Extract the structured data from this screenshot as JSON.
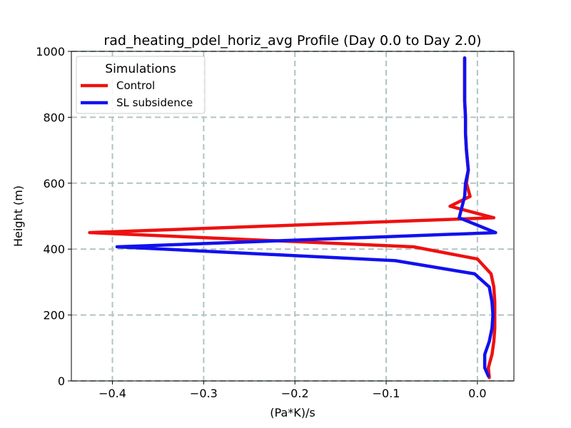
{
  "chart_data": {
    "type": "line",
    "title": "rad_heating_pdel_horiz_avg Profile (Day 0.0 to Day 2.0)",
    "xlabel": "(Pa*K)/s",
    "ylabel": "Height (m)",
    "xlim": [
      -0.445,
      0.04
    ],
    "ylim": [
      0,
      1000
    ],
    "xticks": [
      -0.4,
      -0.3,
      -0.2,
      -0.1,
      0.0
    ],
    "xtick_labels": [
      "−0.4",
      "−0.3",
      "−0.2",
      "−0.1",
      "0.0"
    ],
    "yticks": [
      0,
      200,
      400,
      600,
      800,
      1000
    ],
    "ytick_labels": [
      "0",
      "200",
      "400",
      "600",
      "800",
      "1000"
    ],
    "grid": true,
    "legend": {
      "title": "Simulations",
      "location": "top-left",
      "entries": [
        "Control",
        "SL subsidence"
      ]
    },
    "series": [
      {
        "name": "Control",
        "color": "#ee1111",
        "x": [
          0.013,
          0.012,
          0.016,
          0.018,
          0.019,
          0.019,
          0.019,
          0.018,
          0.015,
          0.0,
          -0.07,
          -0.425,
          0.018,
          -0.03,
          -0.008,
          -0.012,
          -0.01,
          -0.012,
          -0.013,
          -0.013,
          -0.014,
          -0.014,
          -0.014
        ],
        "y": [
          10,
          40,
          80,
          120,
          160,
          200,
          240,
          285,
          325,
          370,
          407,
          450,
          495,
          530,
          560,
          600,
          640,
          700,
          750,
          800,
          850,
          900,
          980
        ]
      },
      {
        "name": "SL subsidence",
        "color": "#1111ee",
        "x": [
          0.012,
          0.008,
          0.008,
          0.013,
          0.016,
          0.017,
          0.016,
          0.013,
          -0.003,
          -0.09,
          -0.395,
          0.02,
          -0.02,
          -0.014,
          -0.013,
          -0.01,
          -0.012,
          -0.013,
          -0.013,
          -0.014,
          -0.014,
          -0.014
        ],
        "y": [
          15,
          40,
          80,
          120,
          160,
          200,
          240,
          285,
          325,
          365,
          407,
          450,
          495,
          560,
          600,
          640,
          700,
          750,
          800,
          850,
          900,
          980
        ]
      }
    ]
  }
}
